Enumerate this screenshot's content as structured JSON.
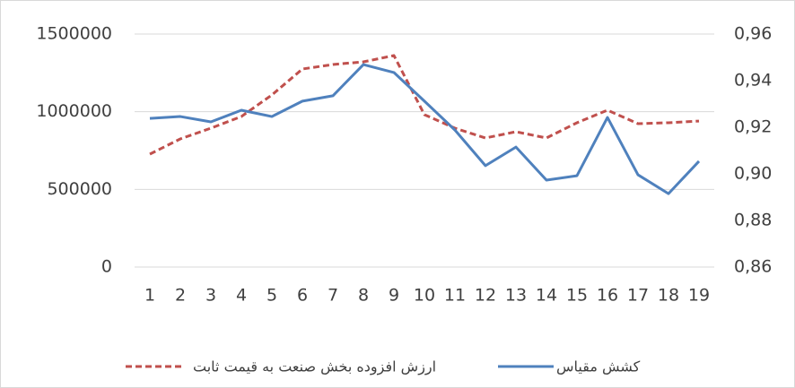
{
  "chart_data": {
    "type": "line",
    "categories": [
      "1",
      "2",
      "3",
      "4",
      "5",
      "6",
      "7",
      "8",
      "9",
      "10",
      "11",
      "12",
      "13",
      "14",
      "15",
      "16",
      "17",
      "18",
      "19"
    ],
    "series": [
      {
        "name": "ارزش افزوده بخش صنعت به قیمت ثابت",
        "color": "#c0504d",
        "dash": true,
        "values": [
          727000,
          825000,
          894000,
          969000,
          1108000,
          1275000,
          1304000,
          1321000,
          1362000,
          981000,
          894000,
          831000,
          871000,
          831000,
          929000,
          1010000,
          923000,
          929000,
          940000
        ]
      },
      {
        "name": "کشش مقیاس",
        "color": "#4f81bd",
        "axis": "y2",
        "values": [
          0.9238,
          0.9246,
          0.9223,
          0.9273,
          0.9246,
          0.9312,
          0.9335,
          0.9469,
          0.9435,
          0.9312,
          0.9188,
          0.9035,
          0.9115,
          0.8973,
          0.8992,
          0.9242,
          0.8996,
          0.8915,
          0.9054
        ]
      }
    ],
    "ylim": [
      0,
      1500000
    ],
    "yticks": [
      0,
      500000,
      1000000,
      1500000
    ],
    "y2lim": [
      0.86,
      0.96
    ],
    "y2ticks": [
      {
        "value": 0.86,
        "label": "0,86"
      },
      {
        "value": 0.88,
        "label": "0,88"
      },
      {
        "value": 0.9,
        "label": "0,90"
      },
      {
        "value": 0.92,
        "label": "0,92"
      },
      {
        "value": 0.94,
        "label": "0,94"
      },
      {
        "value": 0.96,
        "label": "0,96"
      }
    ],
    "grid": true,
    "legend": "bottom"
  }
}
